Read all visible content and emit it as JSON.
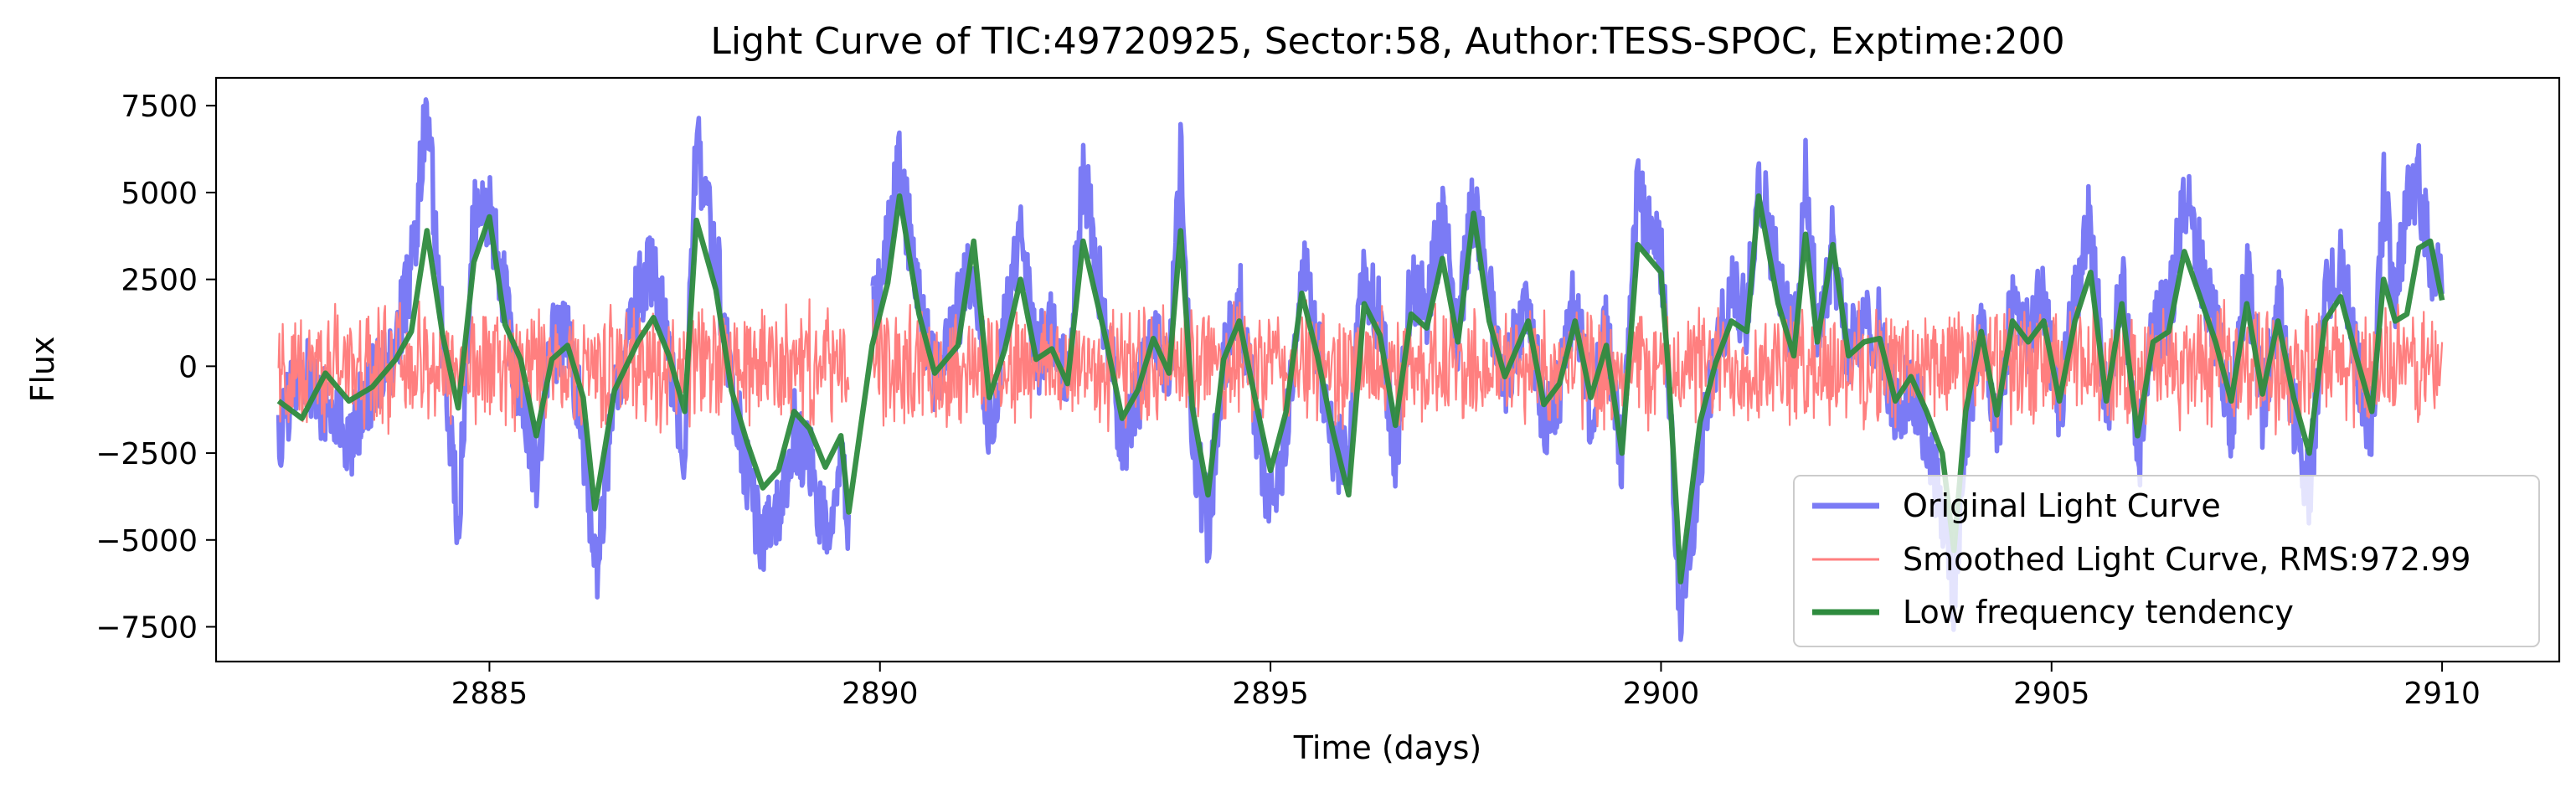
{
  "chart_data": {
    "type": "line",
    "title": "Light Curve of TIC:49720925, Sector:58, Author:TESS-SPOC, Exptime:200",
    "xlabel": "Time (days)",
    "ylabel": "Flux",
    "xlim": [
      2881.5,
      2911.5
    ],
    "ylim": [
      -8500,
      8300
    ],
    "xticks": [
      2885,
      2890,
      2895,
      2900,
      2905,
      2910
    ],
    "yticks": [
      -7500,
      -5000,
      -2500,
      0,
      2500,
      5000,
      7500
    ],
    "grid": false,
    "legend_position": "lower-right",
    "x_range": [
      2882.3,
      2910.0
    ],
    "gap": [
      2889.6,
      2889.9
    ],
    "series": [
      {
        "name": "Original Light Curve",
        "color": "#7b7bf5",
        "points": [
          [
            2882.3,
            -2100
          ],
          [
            2882.6,
            200
          ],
          [
            2882.9,
            -1200
          ],
          [
            2883.2,
            -2200
          ],
          [
            2883.5,
            -500
          ],
          [
            2883.8,
            600
          ],
          [
            2884.0,
            2800
          ],
          [
            2884.2,
            7400
          ],
          [
            2884.4,
            1000
          ],
          [
            2884.6,
            -4800
          ],
          [
            2884.8,
            4200
          ],
          [
            2885.0,
            4500
          ],
          [
            2885.2,
            2000
          ],
          [
            2885.4,
            -1000
          ],
          [
            2885.6,
            -3000
          ],
          [
            2885.8,
            600
          ],
          [
            2886.0,
            1000
          ],
          [
            2886.2,
            -2000
          ],
          [
            2886.35,
            -6100
          ],
          [
            2886.6,
            -1000
          ],
          [
            2886.9,
            2000
          ],
          [
            2887.1,
            2900
          ],
          [
            2887.3,
            300
          ],
          [
            2887.5,
            -2500
          ],
          [
            2887.65,
            6500
          ],
          [
            2887.9,
            3200
          ],
          [
            2888.1,
            -800
          ],
          [
            2888.3,
            -3000
          ],
          [
            2888.5,
            -5300
          ],
          [
            2888.7,
            -4200
          ],
          [
            2888.9,
            -1800
          ],
          [
            2889.1,
            -2800
          ],
          [
            2889.3,
            -4800
          ],
          [
            2889.5,
            -2500
          ],
          [
            2889.6,
            -4400
          ],
          [
            2889.9,
            1500
          ],
          [
            2890.1,
            3600
          ],
          [
            2890.25,
            5600
          ],
          [
            2890.5,
            2000
          ],
          [
            2890.7,
            -400
          ],
          [
            2891.0,
            1500
          ],
          [
            2891.2,
            3000
          ],
          [
            2891.4,
            -2000
          ],
          [
            2891.6,
            1000
          ],
          [
            2891.8,
            3600
          ],
          [
            2892.0,
            200
          ],
          [
            2892.2,
            1100
          ],
          [
            2892.4,
            -700
          ],
          [
            2892.6,
            5600
          ],
          [
            2892.9,
            1000
          ],
          [
            2893.1,
            -2200
          ],
          [
            2893.3,
            -1000
          ],
          [
            2893.5,
            1500
          ],
          [
            2893.7,
            -500
          ],
          [
            2893.85,
            6000
          ],
          [
            2894.0,
            -2000
          ],
          [
            2894.2,
            -4700
          ],
          [
            2894.4,
            400
          ],
          [
            2894.6,
            2000
          ],
          [
            2894.8,
            -1500
          ],
          [
            2895.0,
            -4200
          ],
          [
            2895.2,
            -2000
          ],
          [
            2895.4,
            3100
          ],
          [
            2895.6,
            500
          ],
          [
            2895.8,
            -2500
          ],
          [
            2896.0,
            -2500
          ],
          [
            2896.2,
            2800
          ],
          [
            2896.4,
            1500
          ],
          [
            2896.6,
            -2800
          ],
          [
            2896.8,
            2500
          ],
          [
            2897.0,
            1800
          ],
          [
            2897.2,
            4200
          ],
          [
            2897.4,
            1000
          ],
          [
            2897.6,
            4800
          ],
          [
            2897.8,
            2000
          ],
          [
            2898.0,
            -500
          ],
          [
            2898.3,
            2000
          ],
          [
            2898.5,
            -1800
          ],
          [
            2898.7,
            -700
          ],
          [
            2898.9,
            2000
          ],
          [
            2899.1,
            -1300
          ],
          [
            2899.3,
            1000
          ],
          [
            2899.5,
            -3000
          ],
          [
            2899.7,
            5000
          ],
          [
            2900.0,
            3000
          ],
          [
            2900.1,
            -400
          ],
          [
            2900.25,
            -7600
          ],
          [
            2900.5,
            -2500
          ],
          [
            2900.7,
            300
          ],
          [
            2900.9,
            2000
          ],
          [
            2901.1,
            1500
          ],
          [
            2901.25,
            5600
          ],
          [
            2901.5,
            2500
          ],
          [
            2901.7,
            500
          ],
          [
            2901.85,
            5700
          ],
          [
            2902.0,
            1000
          ],
          [
            2902.2,
            3500
          ],
          [
            2902.4,
            500
          ],
          [
            2902.6,
            1000
          ],
          [
            2902.8,
            1200
          ],
          [
            2903.0,
            -1500
          ],
          [
            2903.2,
            -500
          ],
          [
            2903.4,
            -2000
          ],
          [
            2903.6,
            -4000
          ],
          [
            2903.75,
            -6800
          ],
          [
            2903.9,
            -2000
          ],
          [
            2904.1,
            1500
          ],
          [
            2904.3,
            -2200
          ],
          [
            2904.5,
            2000
          ],
          [
            2904.7,
            1000
          ],
          [
            2904.9,
            2000
          ],
          [
            2905.1,
            -1500
          ],
          [
            2905.3,
            2000
          ],
          [
            2905.5,
            4300
          ],
          [
            2905.7,
            -1500
          ],
          [
            2905.9,
            2700
          ],
          [
            2906.1,
            -3000
          ],
          [
            2906.3,
            1000
          ],
          [
            2906.5,
            1500
          ],
          [
            2906.7,
            4900
          ],
          [
            2906.9,
            3000
          ],
          [
            2907.1,
            1000
          ],
          [
            2907.3,
            -1500
          ],
          [
            2907.5,
            2800
          ],
          [
            2907.7,
            -1200
          ],
          [
            2907.9,
            2000
          ],
          [
            2908.1,
            -1300
          ],
          [
            2908.3,
            -3700
          ],
          [
            2908.5,
            2000
          ],
          [
            2908.7,
            3000
          ],
          [
            2908.9,
            400
          ],
          [
            2909.1,
            -2000
          ],
          [
            2909.25,
            5000
          ],
          [
            2909.4,
            2000
          ],
          [
            2909.55,
            4800
          ],
          [
            2909.7,
            5300
          ],
          [
            2909.85,
            3200
          ],
          [
            2910.0,
            2000
          ]
        ]
      },
      {
        "name": "Smoothed Light Curve, RMS:972.99",
        "color": "#ff7f7f",
        "amplitude": 2000
      },
      {
        "name": "Low frequency tendency",
        "color": "#2e8b3e",
        "points": [
          [
            2882.3,
            -1000
          ],
          [
            2882.6,
            -1500
          ],
          [
            2882.9,
            -200
          ],
          [
            2883.2,
            -1000
          ],
          [
            2883.5,
            -600
          ],
          [
            2883.8,
            200
          ],
          [
            2884.0,
            1000
          ],
          [
            2884.2,
            3900
          ],
          [
            2884.4,
            900
          ],
          [
            2884.6,
            -1200
          ],
          [
            2884.8,
            3000
          ],
          [
            2885.0,
            4300
          ],
          [
            2885.2,
            1200
          ],
          [
            2885.4,
            200
          ],
          [
            2885.6,
            -2000
          ],
          [
            2885.8,
            200
          ],
          [
            2886.0,
            600
          ],
          [
            2886.2,
            -900
          ],
          [
            2886.35,
            -4100
          ],
          [
            2886.6,
            -700
          ],
          [
            2886.9,
            700
          ],
          [
            2887.1,
            1400
          ],
          [
            2887.3,
            300
          ],
          [
            2887.5,
            -1300
          ],
          [
            2887.65,
            4200
          ],
          [
            2887.9,
            2200
          ],
          [
            2888.1,
            -700
          ],
          [
            2888.3,
            -2200
          ],
          [
            2888.5,
            -3500
          ],
          [
            2888.7,
            -3000
          ],
          [
            2888.9,
            -1300
          ],
          [
            2889.1,
            -1800
          ],
          [
            2889.3,
            -2900
          ],
          [
            2889.5,
            -2000
          ],
          [
            2889.6,
            -4200
          ],
          [
            2889.9,
            600
          ],
          [
            2890.1,
            2400
          ],
          [
            2890.25,
            4900
          ],
          [
            2890.5,
            1500
          ],
          [
            2890.7,
            -200
          ],
          [
            2891.0,
            600
          ],
          [
            2891.2,
            3600
          ],
          [
            2891.4,
            -900
          ],
          [
            2891.6,
            500
          ],
          [
            2891.8,
            2500
          ],
          [
            2892.0,
            200
          ],
          [
            2892.2,
            500
          ],
          [
            2892.4,
            -500
          ],
          [
            2892.6,
            3600
          ],
          [
            2892.9,
            700
          ],
          [
            2893.1,
            -1500
          ],
          [
            2893.3,
            -700
          ],
          [
            2893.5,
            800
          ],
          [
            2893.7,
            -200
          ],
          [
            2893.85,
            3900
          ],
          [
            2894.0,
            -1200
          ],
          [
            2894.2,
            -3700
          ],
          [
            2894.4,
            200
          ],
          [
            2894.6,
            1300
          ],
          [
            2894.8,
            -900
          ],
          [
            2895.0,
            -3000
          ],
          [
            2895.2,
            -1300
          ],
          [
            2895.4,
            2100
          ],
          [
            2895.6,
            300
          ],
          [
            2895.8,
            -1900
          ],
          [
            2896.0,
            -3700
          ],
          [
            2896.2,
            1800
          ],
          [
            2896.4,
            900
          ],
          [
            2896.6,
            -1700
          ],
          [
            2896.8,
            1500
          ],
          [
            2897.0,
            1100
          ],
          [
            2897.2,
            3100
          ],
          [
            2897.4,
            700
          ],
          [
            2897.6,
            4400
          ],
          [
            2897.8,
            1300
          ],
          [
            2898.0,
            -300
          ],
          [
            2898.3,
            1300
          ],
          [
            2898.5,
            -1100
          ],
          [
            2898.7,
            -500
          ],
          [
            2898.9,
            1300
          ],
          [
            2899.1,
            -900
          ],
          [
            2899.3,
            600
          ],
          [
            2899.5,
            -2500
          ],
          [
            2899.7,
            3500
          ],
          [
            2900.0,
            2700
          ],
          [
            2900.1,
            -300
          ],
          [
            2900.25,
            -6200
          ],
          [
            2900.5,
            -1600
          ],
          [
            2900.7,
            100
          ],
          [
            2900.9,
            1300
          ],
          [
            2901.1,
            1000
          ],
          [
            2901.25,
            4900
          ],
          [
            2901.5,
            1800
          ],
          [
            2901.7,
            300
          ],
          [
            2901.85,
            3800
          ],
          [
            2902.0,
            700
          ],
          [
            2902.2,
            3500
          ],
          [
            2902.4,
            300
          ],
          [
            2902.6,
            700
          ],
          [
            2902.8,
            800
          ],
          [
            2903.0,
            -1000
          ],
          [
            2903.2,
            -300
          ],
          [
            2903.4,
            -1300
          ],
          [
            2903.6,
            -2500
          ],
          [
            2903.75,
            -5300
          ],
          [
            2903.9,
            -1300
          ],
          [
            2904.1,
            1000
          ],
          [
            2904.3,
            -1400
          ],
          [
            2904.5,
            1300
          ],
          [
            2904.7,
            700
          ],
          [
            2904.9,
            1300
          ],
          [
            2905.1,
            -1000
          ],
          [
            2905.3,
            1300
          ],
          [
            2905.5,
            2700
          ],
          [
            2905.7,
            -1000
          ],
          [
            2905.9,
            1800
          ],
          [
            2906.1,
            -2000
          ],
          [
            2906.3,
            700
          ],
          [
            2906.5,
            1000
          ],
          [
            2906.7,
            3300
          ],
          [
            2906.9,
            2000
          ],
          [
            2907.1,
            700
          ],
          [
            2907.3,
            -1000
          ],
          [
            2907.5,
            1800
          ],
          [
            2907.7,
            -800
          ],
          [
            2907.9,
            1300
          ],
          [
            2908.1,
            -900
          ],
          [
            2908.3,
            -2500
          ],
          [
            2908.5,
            1300
          ],
          [
            2908.7,
            2000
          ],
          [
            2908.9,
            300
          ],
          [
            2909.1,
            -1300
          ],
          [
            2909.25,
            2500
          ],
          [
            2909.4,
            1300
          ],
          [
            2909.55,
            1500
          ],
          [
            2909.7,
            3400
          ],
          [
            2909.85,
            3600
          ],
          [
            2910.0,
            1900
          ]
        ]
      }
    ]
  }
}
